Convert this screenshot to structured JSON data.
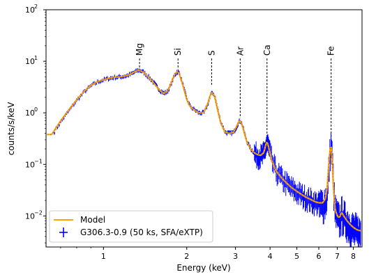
{
  "chart_data": {
    "type": "line",
    "xscale": "log",
    "yscale": "log",
    "xlim": [
      0.62,
      8.6
    ],
    "ylim": [
      0.0025,
      100
    ],
    "xlabel": "Energy (keV)",
    "ylabel": "counts/s/keV",
    "grid": false,
    "legend_position": "lower-left",
    "x_ticks": [
      {
        "value": 1,
        "label": "1"
      },
      {
        "value": 2,
        "label": "2"
      },
      {
        "value": 3,
        "label": "3"
      },
      {
        "value": 4,
        "label": "4"
      },
      {
        "value": 5,
        "label": "5"
      },
      {
        "value": 6,
        "label": "6"
      },
      {
        "value": 7,
        "label": "7"
      },
      {
        "value": 8,
        "label": "8"
      }
    ],
    "y_ticks": [
      {
        "value": 0.01,
        "base": "10",
        "exp": "−2"
      },
      {
        "value": 0.1,
        "base": "10",
        "exp": "−1"
      },
      {
        "value": 1,
        "base": "10",
        "exp": "0"
      },
      {
        "value": 10,
        "base": "10",
        "exp": "1"
      },
      {
        "value": 100,
        "base": "10",
        "exp": "2"
      }
    ],
    "lines": [
      {
        "label": "Mg",
        "x": 1.35,
        "y_bottom": 7.2
      },
      {
        "label": "Si",
        "x": 1.86,
        "y_bottom": 7.0
      },
      {
        "label": "S",
        "x": 2.46,
        "y_bottom": 3.5
      },
      {
        "label": "Ar",
        "x": 3.12,
        "y_bottom": 0.8
      },
      {
        "label": "Ca",
        "x": 3.9,
        "y_bottom": 0.3
      },
      {
        "label": "Fe",
        "x": 6.65,
        "y_bottom": 0.24
      }
    ],
    "series": [
      {
        "name": "Model",
        "color": "#ffa500",
        "x": [
          0.65,
          0.7,
          0.75,
          0.8,
          0.85,
          0.9,
          0.95,
          1.0,
          1.05,
          1.1,
          1.15,
          1.2,
          1.25,
          1.3,
          1.33,
          1.36,
          1.4,
          1.45,
          1.5,
          1.55,
          1.6,
          1.65,
          1.7,
          1.75,
          1.8,
          1.84,
          1.87,
          1.9,
          1.95,
          2.0,
          2.05,
          2.1,
          2.15,
          2.2,
          2.3,
          2.38,
          2.43,
          2.47,
          2.52,
          2.58,
          2.65,
          2.75,
          2.85,
          2.95,
          3.03,
          3.08,
          3.12,
          3.17,
          3.23,
          3.3,
          3.4,
          3.5,
          3.6,
          3.7,
          3.8,
          3.86,
          3.9,
          3.95,
          4.05,
          4.2,
          4.4,
          4.6,
          4.8,
          5.0,
          5.2,
          5.4,
          5.6,
          5.8,
          6.0,
          6.2,
          6.35,
          6.45,
          6.52,
          6.58,
          6.63,
          6.67,
          6.72,
          6.78,
          6.85,
          6.95,
          7.05,
          7.15,
          7.25,
          7.4,
          7.6,
          7.8,
          8.0,
          8.2,
          8.4
        ],
        "y": [
          0.38,
          0.7,
          1.15,
          1.8,
          2.6,
          3.4,
          4.0,
          4.4,
          4.7,
          4.9,
          5.0,
          5.2,
          5.6,
          6.3,
          6.7,
          6.6,
          6.0,
          5.0,
          4.1,
          3.3,
          2.7,
          2.4,
          2.6,
          3.6,
          5.3,
          6.3,
          6.0,
          4.8,
          3.0,
          1.8,
          1.35,
          1.2,
          1.1,
          1.0,
          1.0,
          1.5,
          2.2,
          2.5,
          2.1,
          1.2,
          0.65,
          0.42,
          0.4,
          0.42,
          0.55,
          0.68,
          0.7,
          0.58,
          0.4,
          0.27,
          0.2,
          0.17,
          0.155,
          0.15,
          0.17,
          0.24,
          0.28,
          0.22,
          0.12,
          0.075,
          0.055,
          0.043,
          0.035,
          0.03,
          0.026,
          0.023,
          0.021,
          0.019,
          0.018,
          0.018,
          0.022,
          0.04,
          0.1,
          0.19,
          0.24,
          0.2,
          0.1,
          0.035,
          0.015,
          0.011,
          0.0095,
          0.0095,
          0.012,
          0.0098,
          0.008,
          0.0068,
          0.006,
          0.0055,
          0.0052
        ]
      },
      {
        "name": "G306.3-0.9 (50 ks, SFA/eXTP)",
        "color": "#0000ff"
      }
    ]
  }
}
